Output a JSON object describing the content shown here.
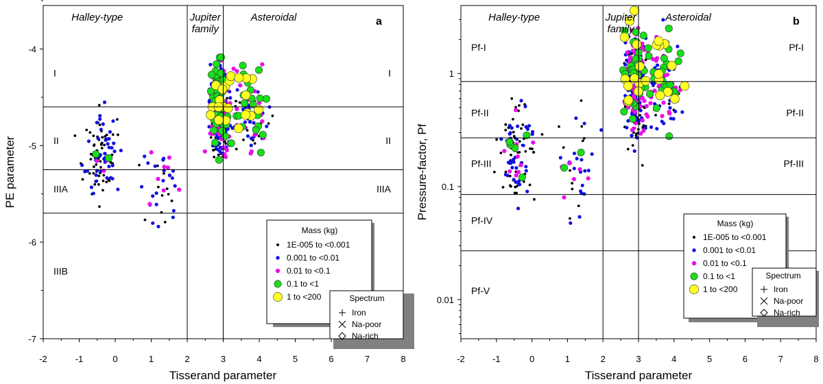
{
  "colors": {
    "black": "#000000",
    "blue": "#1010e0",
    "magenta": "#e810e8",
    "green": "#18e018",
    "yellow": "#ffff22",
    "shadow": "#808080"
  },
  "legend": {
    "mass_title": "Mass (kg)",
    "spectrum_title": "Spectrum",
    "mass_classes": [
      {
        "label": "1E-005 to <0.001",
        "color": "black"
      },
      {
        "label": "0.001 to <0.01",
        "color": "blue"
      },
      {
        "label": "0.01 to <0.1",
        "color": "magenta"
      },
      {
        "label": "0.1 to <1",
        "color": "green"
      },
      {
        "label": "1 to <200",
        "color": "yellow"
      }
    ],
    "spectrum": [
      {
        "label": "Iron",
        "symbol": "plus"
      },
      {
        "label": "Na-poor",
        "symbol": "cross"
      },
      {
        "label": "Na-rich",
        "symbol": "diamond"
      }
    ]
  },
  "chart_data": [
    {
      "panel": "a",
      "type": "scatter",
      "xlabel": "Tisserand parameter",
      "ylabel": "PE parameter",
      "xlim": [
        -2,
        8
      ],
      "ylim": [
        -7,
        -3.55
      ],
      "yscale": "linear",
      "xticks": [
        "-2",
        "-1",
        "0",
        "1",
        "2",
        "3",
        "4",
        "5",
        "6",
        "7",
        "8"
      ],
      "yticks": [
        {
          "v": -4,
          "label": "-4"
        },
        {
          "v": -5,
          "label": "-5"
        },
        {
          "v": -6,
          "label": "-6"
        },
        {
          "v": -7,
          "label": "-7"
        }
      ],
      "vlines": [
        2,
        3
      ],
      "hlines": [
        -4.6,
        -5.25,
        -5.7
      ],
      "region_titles": [
        {
          "x": -0.5,
          "text": "Halley-type"
        },
        {
          "x": 2.5,
          "text": "Jupiter\nfamily"
        },
        {
          "x": 4.4,
          "text": "Asteroidal"
        }
      ],
      "class_labels_left": [
        {
          "y": -4.25,
          "text": "I"
        },
        {
          "y": -4.95,
          "text": "II"
        },
        {
          "y": -5.45,
          "text": "IIIA"
        },
        {
          "y": -6.3,
          "text": "IIIB"
        }
      ],
      "class_labels_right": [
        {
          "y": -4.25,
          "text": "I"
        },
        {
          "y": -4.95,
          "text": "II"
        },
        {
          "y": -5.45,
          "text": "IIIA"
        }
      ]
    },
    {
      "panel": "b",
      "type": "scatter",
      "xlabel": "Tisserand parameter",
      "ylabel": "Pressure-factor, Pf",
      "xlim": [
        -2,
        8
      ],
      "ylim": [
        0.0045,
        4
      ],
      "yscale": "log",
      "xticks": [
        "-2",
        "-1",
        "0",
        "1",
        "2",
        "3",
        "4",
        "5",
        "6",
        "7",
        "8"
      ],
      "yticks": [
        {
          "v": 1,
          "label": "1"
        },
        {
          "v": 0.1,
          "label": "0.1"
        },
        {
          "v": 0.01,
          "label": "0.01"
        }
      ],
      "vlines": [
        2,
        3
      ],
      "hlines": [
        0.85,
        0.27,
        0.085,
        0.027
      ],
      "region_titles": [
        {
          "x": -0.5,
          "text": "Halley-type"
        },
        {
          "x": 2.5,
          "text": "Jupiter\nfamily"
        },
        {
          "x": 4.4,
          "text": "Asteroidal"
        }
      ],
      "class_labels_left": [
        {
          "y": 1.7,
          "text": "Pf-I"
        },
        {
          "y": 0.45,
          "text": "Pf-II"
        },
        {
          "y": 0.16,
          "text": "Pf-III"
        },
        {
          "y": 0.05,
          "text": "Pf-IV"
        },
        {
          "y": 0.012,
          "text": "Pf-V"
        }
      ],
      "class_labels_right": [
        {
          "y": 1.7,
          "text": "Pf-I"
        },
        {
          "y": 0.45,
          "text": "Pf-II"
        },
        {
          "y": 0.16,
          "text": "Pf-III"
        }
      ]
    }
  ],
  "panel_letters": [
    "a",
    "b"
  ]
}
